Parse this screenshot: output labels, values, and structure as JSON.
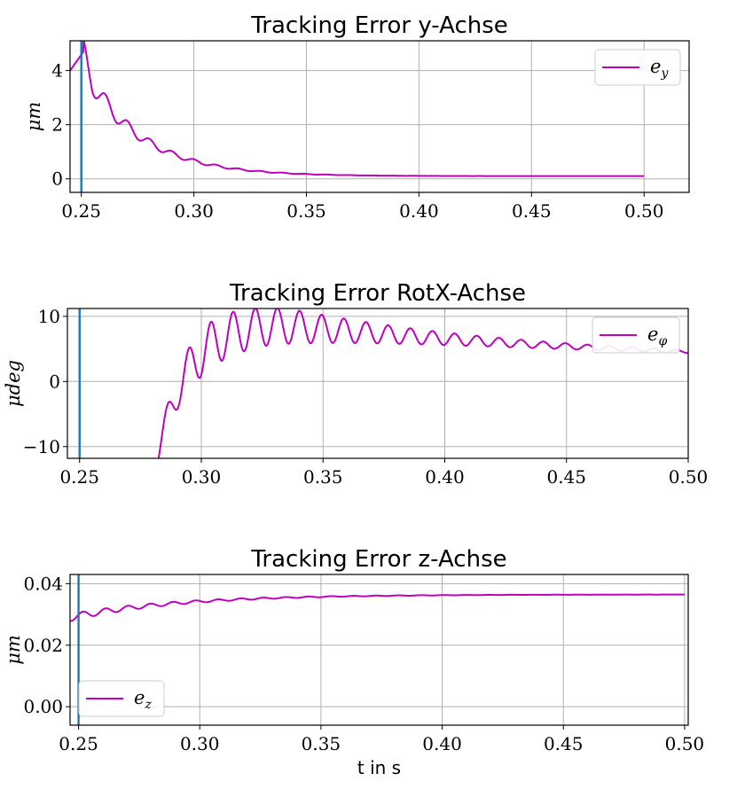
{
  "chart_data": [
    {
      "type": "line",
      "title": "Tracking Error y-Achse",
      "ylabel": "μm",
      "xlabel": "",
      "xlim": [
        0.245,
        0.52
      ],
      "ylim": [
        -0.5,
        5.1
      ],
      "xticks": [
        0.25,
        0.3,
        0.35,
        0.4,
        0.45,
        0.5
      ],
      "xtick_labels": [
        "0.25",
        "0.30",
        "0.35",
        "0.40",
        "0.45",
        "0.50"
      ],
      "yticks": [
        0,
        2,
        4
      ],
      "ytick_labels": [
        "0",
        "2",
        "4"
      ],
      "grid": true,
      "legend_position": "upper-right",
      "vline": {
        "x": 0.25,
        "color": "#1f77b4"
      },
      "series": [
        {
          "name_main": "e",
          "name_sub": "y",
          "color": "#bf00bf",
          "model": {
            "kind": "decay",
            "t0": 0.245,
            "t_end": 0.5,
            "base": 0.1,
            "amp": 4.0,
            "tau": 0.025,
            "osc": 0.45,
            "omega": 640,
            "phase": 1.2,
            "rise_until": 0.251
          }
        }
      ]
    },
    {
      "type": "line",
      "title": "Tracking Error RotX-Achse",
      "ylabel": "μdeg",
      "xlabel": "",
      "xlim": [
        0.245,
        0.5
      ],
      "ylim": [
        -11.8,
        11.2
      ],
      "xticks": [
        0.25,
        0.3,
        0.35,
        0.4,
        0.45,
        0.5
      ],
      "xtick_labels": [
        "0.25",
        "0.30",
        "0.35",
        "0.40",
        "0.45",
        "0.50"
      ],
      "yticks": [
        -10,
        0,
        10
      ],
      "ytick_labels": [
        "−10",
        "0",
        "10"
      ],
      "grid": true,
      "legend_position": "upper-right",
      "vline": {
        "x": 0.25,
        "color": "#1f77b4"
      },
      "series": [
        {
          "name_main": "e",
          "name_sub": "φ",
          "color": "#bf00bf",
          "model": {
            "kind": "rotx",
            "t0": 0.2815,
            "t_end": 0.5
          }
        }
      ]
    },
    {
      "type": "line",
      "title": "Tracking Error z-Achse",
      "ylabel": "μm",
      "xlabel": "t in s",
      "xlim": [
        0.2465,
        0.5015
      ],
      "ylim": [
        -0.006,
        0.043
      ],
      "xticks": [
        0.25,
        0.3,
        0.35,
        0.4,
        0.45,
        0.5
      ],
      "xtick_labels": [
        "0.25",
        "0.30",
        "0.35",
        "0.40",
        "0.45",
        "0.50"
      ],
      "yticks": [
        0.0,
        0.02,
        0.04
      ],
      "ytick_labels": [
        "0.00",
        "0.02",
        "0.04"
      ],
      "grid": true,
      "legend_position": "lower-left",
      "vline": {
        "x": 0.25,
        "color": "#1f77b4"
      },
      "series": [
        {
          "name_main": "e",
          "name_sub": "z",
          "color": "#bf00bf",
          "model": {
            "kind": "zax",
            "t0": 0.2465,
            "t_end": 0.5
          }
        }
      ]
    }
  ]
}
